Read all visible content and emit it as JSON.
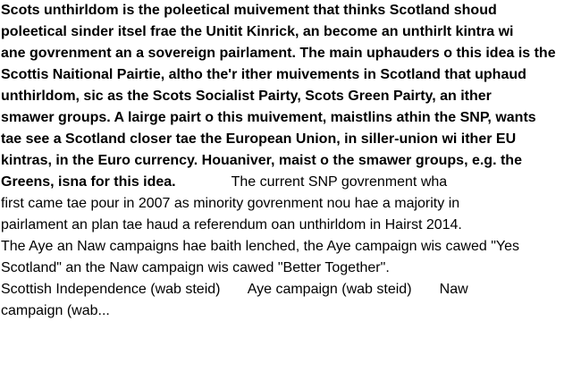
{
  "lines": [
    [
      {
        "t": "Scots unthirldom is the poleetical muivement that thinks Scotland shoud",
        "b": true
      }
    ],
    [
      {
        "t": "poleetical sinder itsel frae the Unitit Kinrick, an become an unthirlt kintra wi",
        "b": true
      }
    ],
    [
      {
        "t": "ane govrenment an a sovereign pairlament. The main uphauders o this idea is the",
        "b": true
      }
    ],
    [
      {
        "t": "Scottis Naitional Pairtie, altho the'r ither muivements in Scotland that uphaud",
        "b": true
      }
    ],
    [
      {
        "t": "unthirldom, sic as the Scots Socialist Pairty, Scots Green Pairty, an ither",
        "b": true
      }
    ],
    [
      {
        "t": "smawer groups. A lairge pairt o this muivement, maistlins athin the SNP, wants",
        "b": true
      }
    ],
    [
      {
        "t": "tae see a Scotland closer tae the European Union, in siller-union wi ither EU",
        "b": true
      }
    ],
    [
      {
        "t": "kintras, in the Euro currency. Houaniver, maist o the smawer groups, e.g. the",
        "b": true
      }
    ],
    [
      {
        "t": "Greens, isna for this idea.",
        "b": true
      },
      {
        "t": "              The current SNP govrenment wha",
        "b": false
      }
    ],
    [
      {
        "t": "first came tae pour in 2007 as minority govrenment nou hae a majority in",
        "b": false
      }
    ],
    [
      {
        "t": "pairlament an plan tae haud a referendum oan unthirldom in Hairst 2014.",
        "b": false
      }
    ],
    [
      {
        "t": "The Aye an Naw campaigns hae baith lenched, the Aye campaign wis cawed \"Yes",
        "b": false
      }
    ],
    [
      {
        "t": "Scotland\" an the Naw campaign wis cawed \"Better Together\".",
        "b": false
      }
    ],
    [
      {
        "t": "Scottish Independence (wab steid)       Aye campaign (wab steid)       Naw",
        "b": false
      }
    ],
    [
      {
        "t": "campaign (wab...",
        "b": false
      }
    ]
  ]
}
